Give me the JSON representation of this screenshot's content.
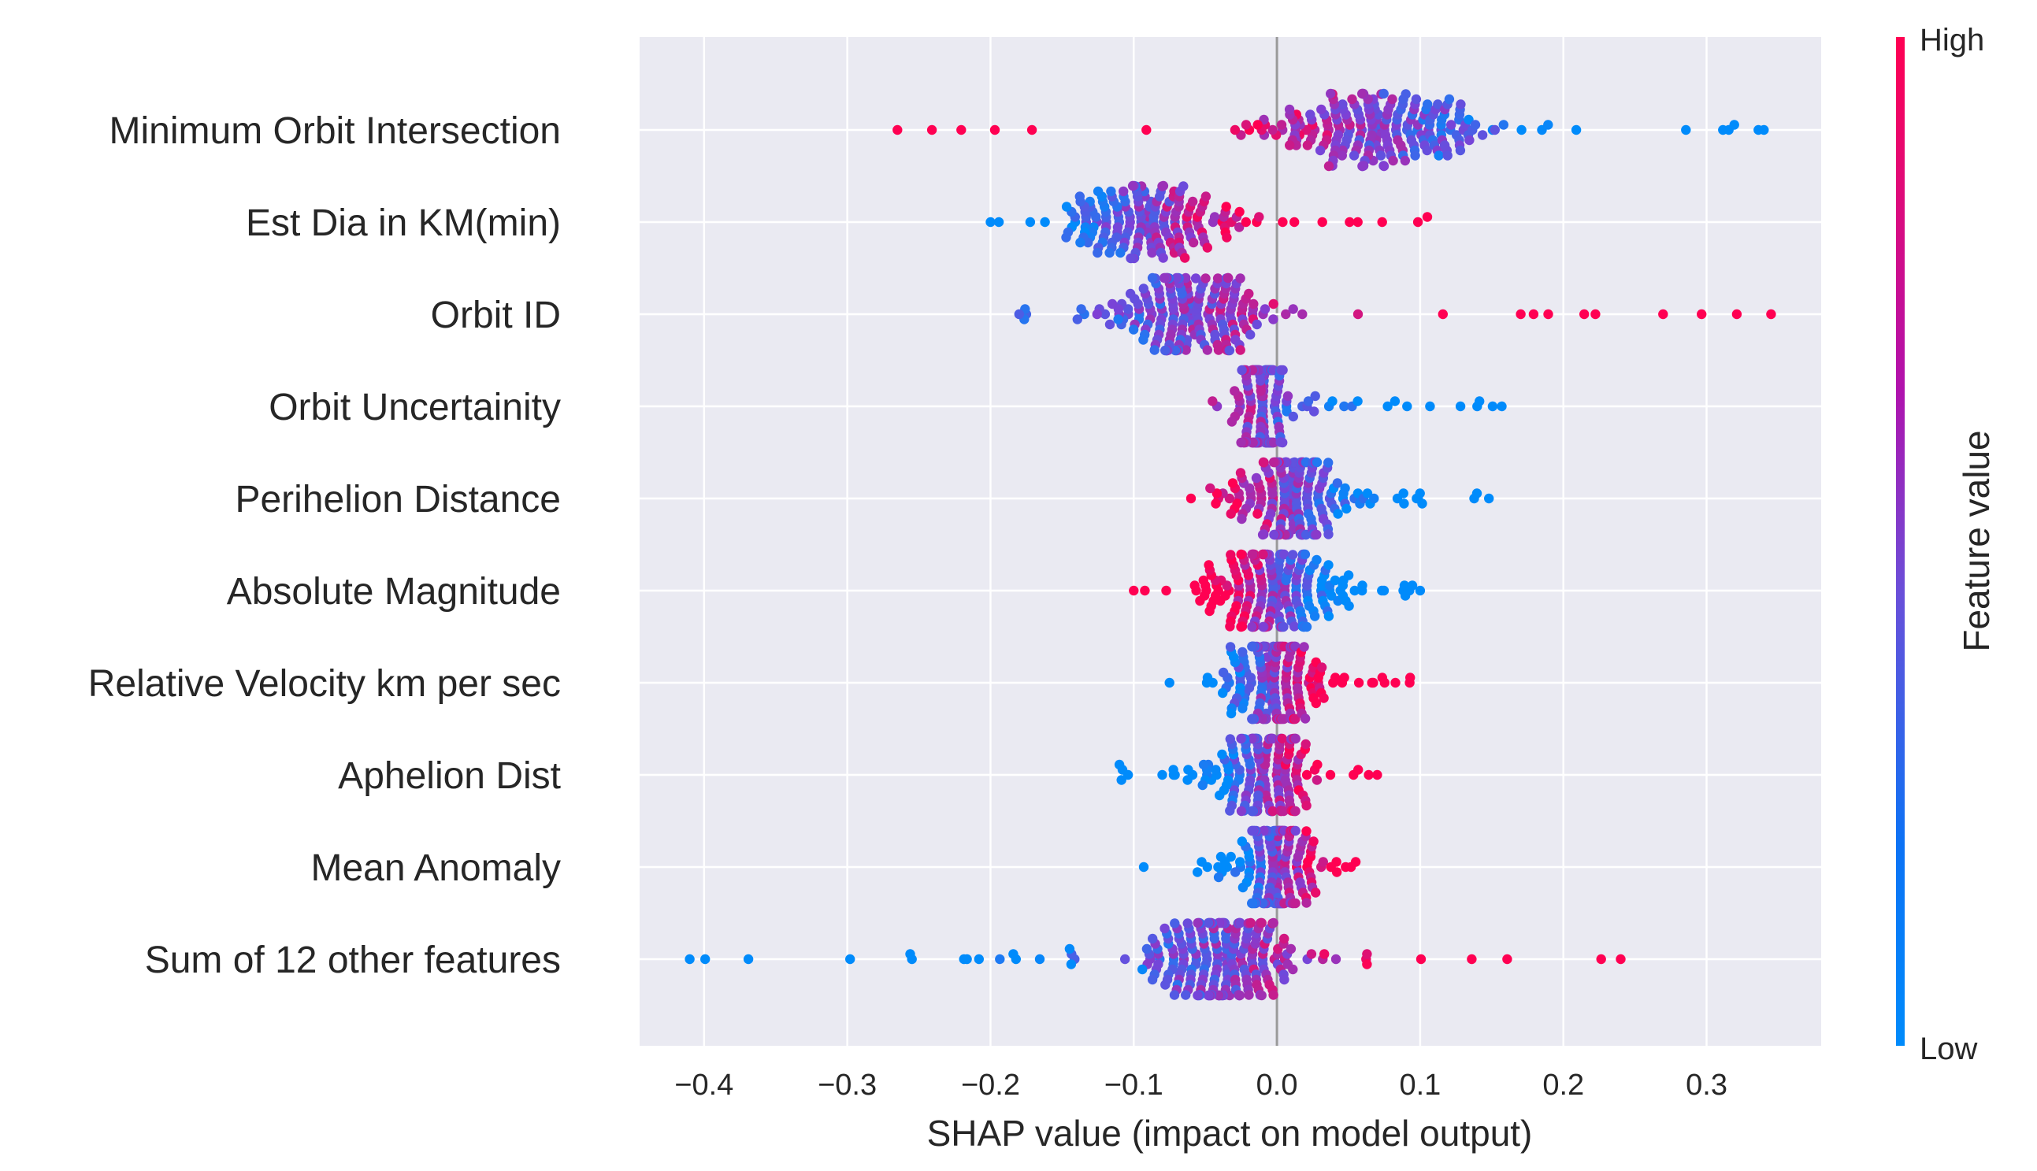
{
  "chart_data": {
    "type": "scatter",
    "subtype": "shap-beeswarm",
    "xlabel": "SHAP value (impact on model output)",
    "xlim": [
      -0.445,
      0.38
    ],
    "xticks": [
      -0.4,
      -0.3,
      -0.2,
      -0.1,
      0.0,
      0.1,
      0.2,
      0.3
    ],
    "xtick_labels": [
      "−0.4",
      "−0.3",
      "−0.2",
      "−0.1",
      "0.0",
      "0.1",
      "0.2",
      "0.3"
    ],
    "grid": true,
    "colorbar": {
      "label": "Feature value",
      "high_label": "High",
      "low_label": "Low",
      "low_color": "#008bfb",
      "high_color": "#ff0052"
    },
    "features": [
      {
        "name": "Minimum Orbit Intersection",
        "min": -0.265,
        "max": 0.34,
        "center": 0.07,
        "spread": 0.06,
        "dir": -1,
        "n": 230
      },
      {
        "name": "Est Dia in KM(min)",
        "min": -0.2,
        "max": 0.105,
        "center": -0.09,
        "spread": 0.045,
        "dir": 1,
        "n": 190
      },
      {
        "name": "Orbit ID",
        "min": -0.18,
        "max": 0.345,
        "center": -0.06,
        "spread": 0.045,
        "dir": 1,
        "n": 210
      },
      {
        "name": "Orbit Uncertainity",
        "min": -0.045,
        "max": 0.157,
        "center": -0.01,
        "spread": 0.012,
        "dir": -1,
        "n": 190
      },
      {
        "name": "Perihelion Distance",
        "min": -0.06,
        "max": 0.148,
        "center": 0.01,
        "spread": 0.03,
        "dir": -1,
        "n": 200
      },
      {
        "name": "Absolute Magnitude",
        "min": -0.1,
        "max": 0.1,
        "center": 0.0,
        "spread": 0.035,
        "dir": -1,
        "n": 210
      },
      {
        "name": "Relative Velocity km per sec",
        "min": -0.075,
        "max": 0.093,
        "center": -0.005,
        "spread": 0.022,
        "dir": 1,
        "n": 200
      },
      {
        "name": "Aphelion Dist",
        "min": -0.11,
        "max": 0.07,
        "center": -0.01,
        "spread": 0.025,
        "dir": 1,
        "n": 190
      },
      {
        "name": "Mean Anomaly",
        "min": -0.093,
        "max": 0.055,
        "center": 0.0,
        "spread": 0.02,
        "dir": 1,
        "n": 180
      },
      {
        "name": "Sum of 12 other features",
        "min": -0.41,
        "max": 0.24,
        "center": -0.035,
        "spread": 0.035,
        "dir": 1,
        "n": 250
      }
    ]
  }
}
